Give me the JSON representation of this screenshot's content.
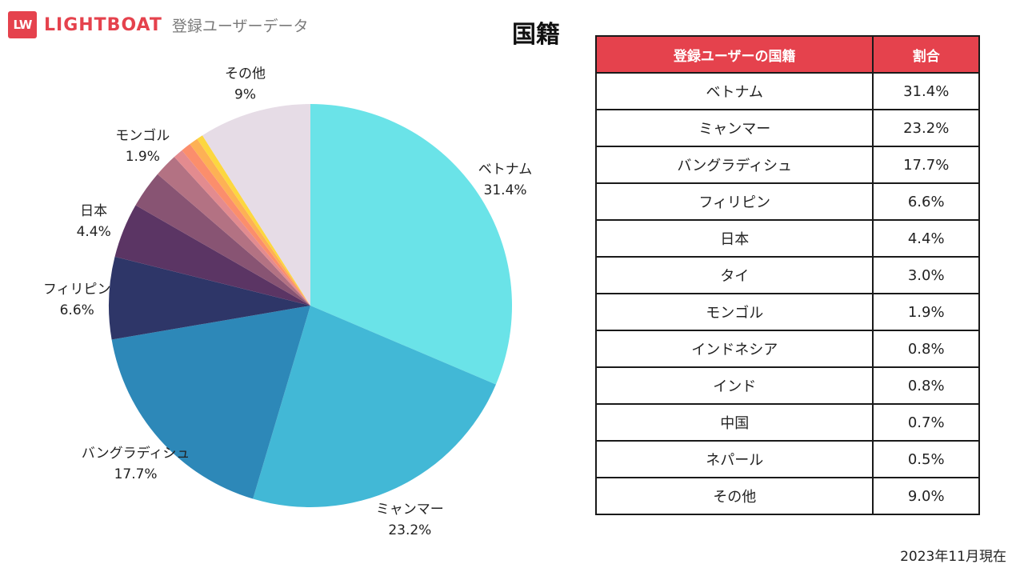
{
  "header": {
    "logo_mark": "LW",
    "logo_text": "LIGHTBOAT",
    "subtitle": "登録ユーザーデータ"
  },
  "chart_data": {
    "type": "pie",
    "title": "国籍",
    "start": "top, clockwise",
    "slices": [
      {
        "name": "ベトナム",
        "value": 31.4,
        "color": "#6ae3e8",
        "label": true,
        "pct_text": "31.4%"
      },
      {
        "name": "ミャンマー",
        "value": 23.2,
        "color": "#42b8d6",
        "label": true,
        "pct_text": "23.2%"
      },
      {
        "name": "バングラディシュ",
        "value": 17.7,
        "color": "#2d88b8",
        "label": true,
        "pct_text": "17.7%"
      },
      {
        "name": "フィリピン",
        "value": 6.6,
        "color": "#2e3668",
        "label": true,
        "pct_text": "6.6%"
      },
      {
        "name": "日本",
        "value": 4.4,
        "color": "#5b3564",
        "label": true,
        "pct_text": "4.4%"
      },
      {
        "name": "タイ",
        "value": 3.0,
        "color": "#885473",
        "label": false
      },
      {
        "name": "モンゴル",
        "value": 1.9,
        "color": "#b37283",
        "label": true,
        "pct_text": "1.9%"
      },
      {
        "name": "インドネシア",
        "value": 0.8,
        "color": "#e38b8f",
        "label": false
      },
      {
        "name": "インド",
        "value": 0.8,
        "color": "#fb8e6c",
        "label": false
      },
      {
        "name": "中国",
        "value": 0.7,
        "color": "#fdb155",
        "label": false
      },
      {
        "name": "ネパール",
        "value": 0.5,
        "color": "#fcd740",
        "label": false
      },
      {
        "name": "その他",
        "value": 9.0,
        "color": "#e6dce6",
        "label": true,
        "pct_text": "9%"
      }
    ]
  },
  "table": {
    "headers": [
      "登録ユーザーの国籍",
      "割合"
    ],
    "rows": [
      [
        "ベトナム",
        "31.4%"
      ],
      [
        "ミャンマー",
        "23.2%"
      ],
      [
        "バングラディシュ",
        "17.7%"
      ],
      [
        "フィリピン",
        "6.6%"
      ],
      [
        "日本",
        "4.4%"
      ],
      [
        "タイ",
        "3.0%"
      ],
      [
        "モンゴル",
        "1.9%"
      ],
      [
        "インドネシア",
        "0.8%"
      ],
      [
        "インド",
        "0.8%"
      ],
      [
        "中国",
        "0.7%"
      ],
      [
        "ネパール",
        "0.5%"
      ],
      [
        "その他",
        "9.0%"
      ]
    ]
  },
  "footnote": "2023年11月現在"
}
